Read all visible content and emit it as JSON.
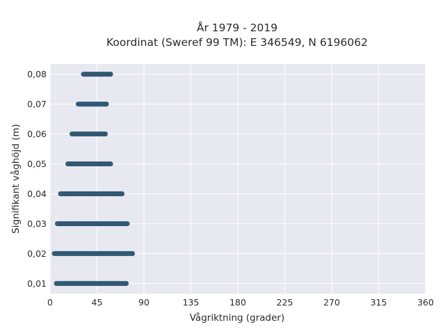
{
  "chart_data": {
    "type": "scatter",
    "title": [
      "År 1979 - 2019",
      "Koordinat (Sweref 99 TM): E 346549, N 6196062"
    ],
    "xlabel": "Vågriktning (grader)",
    "ylabel": "Signifikant våghöjd (m)",
    "xlim": [
      0,
      360
    ],
    "ylim": [
      0.0066,
      0.0834
    ],
    "x_ticks": [
      0,
      45,
      90,
      135,
      180,
      225,
      270,
      315,
      360
    ],
    "x_tick_labels": [
      "0",
      "45",
      "90",
      "135",
      "180",
      "225",
      "270",
      "315",
      "360"
    ],
    "y_ticks": [
      0.01,
      0.02,
      0.03,
      0.04,
      0.05,
      0.06,
      0.07,
      0.08
    ],
    "y_tick_labels": [
      "0,01",
      "0,02",
      "0,03",
      "0,04",
      "0,05",
      "0,06",
      "0,07",
      "0,08"
    ],
    "grid": true,
    "marker_color": "#2f5570",
    "background_color": "#e8e8f0",
    "series": [
      {
        "ranges": [
          {
            "y": 0.01,
            "x_min": 6,
            "x_max": 73
          },
          {
            "y": 0.02,
            "x_min": 4,
            "x_max": 79
          },
          {
            "y": 0.03,
            "x_min": 7,
            "x_max": 74
          },
          {
            "y": 0.04,
            "x_min": 10,
            "x_max": 69
          },
          {
            "y": 0.05,
            "x_min": 17,
            "x_max": 58
          },
          {
            "y": 0.06,
            "x_min": 21,
            "x_max": 53
          },
          {
            "y": 0.07,
            "x_min": 27,
            "x_max": 54
          },
          {
            "y": 0.08,
            "x_min": 32,
            "x_max": 58
          }
        ]
      }
    ]
  }
}
